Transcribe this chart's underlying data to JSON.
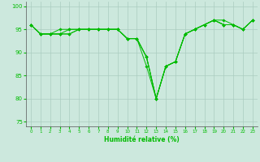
{
  "xlabel": "Humidité relative (%)",
  "background_color": "#cce8dd",
  "grid_color": "#aaccc0",
  "line_color": "#00bb00",
  "xlim": [
    -0.5,
    23.5
  ],
  "ylim": [
    74,
    101
  ],
  "yticks": [
    75,
    80,
    85,
    90,
    95,
    100
  ],
  "xticks": [
    0,
    1,
    2,
    3,
    4,
    5,
    6,
    7,
    8,
    9,
    10,
    11,
    12,
    13,
    14,
    15,
    16,
    17,
    18,
    19,
    20,
    21,
    22,
    23
  ],
  "series": [
    [
      96,
      94,
      94,
      94,
      94,
      95,
      95,
      95,
      95,
      95,
      93,
      93,
      89,
      80,
      87,
      88,
      94,
      95,
      96,
      97,
      96,
      96,
      95,
      97
    ],
    [
      96,
      94,
      94,
      94,
      95,
      95,
      95,
      95,
      95,
      95,
      93,
      93,
      89,
      80,
      87,
      88,
      94,
      95,
      96,
      97,
      96,
      96,
      95,
      97
    ],
    [
      96,
      94,
      94,
      94,
      94,
      95,
      95,
      95,
      95,
      95,
      93,
      93,
      87,
      80,
      87,
      88,
      94,
      95,
      96,
      97,
      96,
      96,
      95,
      97
    ],
    [
      96,
      94,
      94,
      95,
      95,
      95,
      95,
      95,
      95,
      95,
      93,
      93,
      89,
      80,
      87,
      88,
      94,
      95,
      96,
      97,
      97,
      96,
      95,
      97
    ]
  ]
}
